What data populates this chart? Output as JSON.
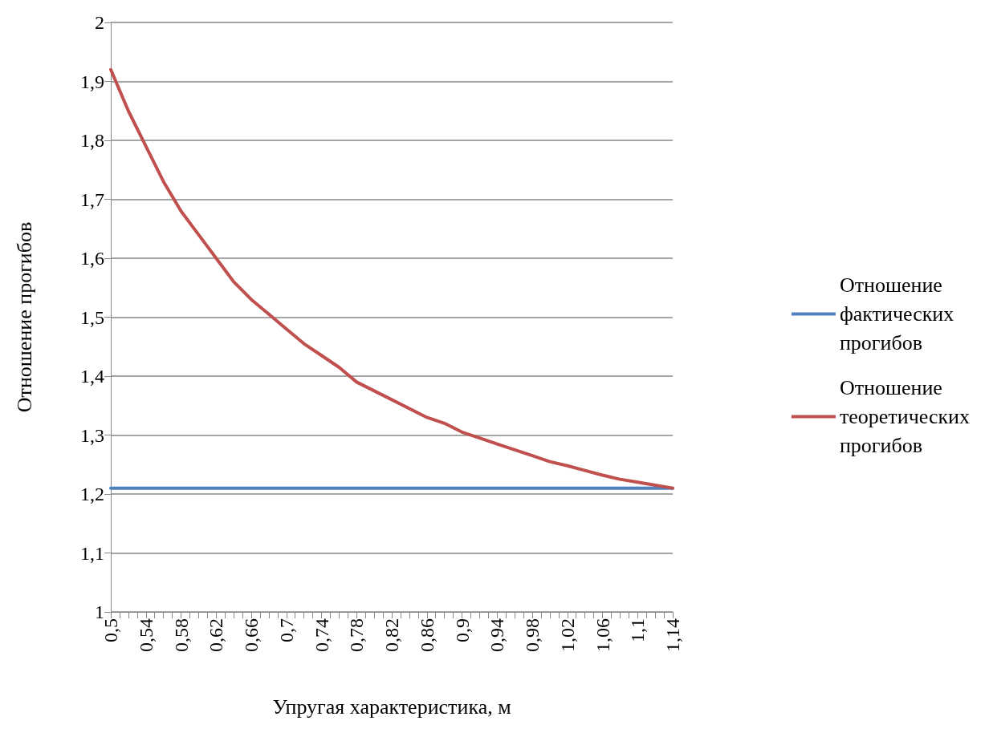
{
  "chart_data": {
    "type": "line",
    "xlabel": "Упругая характеристика, м",
    "ylabel": "Отношение прогибов",
    "xlim": [
      0.5,
      1.14
    ],
    "xticks": [
      {
        "value": 0.5,
        "label": "0,5"
      },
      {
        "value": 0.51,
        "label": null
      },
      {
        "value": 0.52,
        "label": null
      },
      {
        "value": 0.53,
        "label": null
      },
      {
        "value": 0.54,
        "label": "0,54"
      },
      {
        "value": 0.55,
        "label": null
      },
      {
        "value": 0.56,
        "label": null
      },
      {
        "value": 0.57,
        "label": null
      },
      {
        "value": 0.58,
        "label": "0,58"
      },
      {
        "value": 0.59,
        "label": null
      },
      {
        "value": 0.6,
        "label": null
      },
      {
        "value": 0.61,
        "label": null
      },
      {
        "value": 0.62,
        "label": "0,62"
      },
      {
        "value": 0.63,
        "label": null
      },
      {
        "value": 0.64,
        "label": null
      },
      {
        "value": 0.65,
        "label": null
      },
      {
        "value": 0.66,
        "label": "0,66"
      },
      {
        "value": 0.67,
        "label": null
      },
      {
        "value": 0.68,
        "label": null
      },
      {
        "value": 0.69,
        "label": null
      },
      {
        "value": 0.7,
        "label": "0,7"
      },
      {
        "value": 0.71,
        "label": null
      },
      {
        "value": 0.72,
        "label": null
      },
      {
        "value": 0.73,
        "label": null
      },
      {
        "value": 0.74,
        "label": "0,74"
      },
      {
        "value": 0.75,
        "label": null
      },
      {
        "value": 0.76,
        "label": null
      },
      {
        "value": 0.77,
        "label": null
      },
      {
        "value": 0.78,
        "label": "0,78"
      },
      {
        "value": 0.79,
        "label": null
      },
      {
        "value": 0.8,
        "label": null
      },
      {
        "value": 0.81,
        "label": null
      },
      {
        "value": 0.82,
        "label": "0,82"
      },
      {
        "value": 0.83,
        "label": null
      },
      {
        "value": 0.84,
        "label": null
      },
      {
        "value": 0.85,
        "label": null
      },
      {
        "value": 0.86,
        "label": "0,86"
      },
      {
        "value": 0.87,
        "label": null
      },
      {
        "value": 0.88,
        "label": null
      },
      {
        "value": 0.89,
        "label": null
      },
      {
        "value": 0.9,
        "label": "0,9"
      },
      {
        "value": 0.91,
        "label": null
      },
      {
        "value": 0.92,
        "label": null
      },
      {
        "value": 0.93,
        "label": null
      },
      {
        "value": 0.94,
        "label": "0,94"
      },
      {
        "value": 0.95,
        "label": null
      },
      {
        "value": 0.96,
        "label": null
      },
      {
        "value": 0.97,
        "label": null
      },
      {
        "value": 0.98,
        "label": "0,98"
      },
      {
        "value": 0.99,
        "label": null
      },
      {
        "value": 1.0,
        "label": null
      },
      {
        "value": 1.01,
        "label": null
      },
      {
        "value": 1.02,
        "label": "1,02"
      },
      {
        "value": 1.03,
        "label": null
      },
      {
        "value": 1.04,
        "label": null
      },
      {
        "value": 1.05,
        "label": null
      },
      {
        "value": 1.06,
        "label": "1,06"
      },
      {
        "value": 1.07,
        "label": null
      },
      {
        "value": 1.08,
        "label": null
      },
      {
        "value": 1.09,
        "label": null
      },
      {
        "value": 1.1,
        "label": "1,1"
      },
      {
        "value": 1.11,
        "label": null
      },
      {
        "value": 1.12,
        "label": null
      },
      {
        "value": 1.13,
        "label": null
      },
      {
        "value": 1.14,
        "label": "1,14"
      }
    ],
    "ylim": [
      1,
      2
    ],
    "yticks": [
      1,
      {
        "value": 1.1,
        "label": "1,1"
      },
      {
        "value": 1.2,
        "label": "1,2"
      },
      {
        "value": 1.3,
        "label": "1,3"
      },
      {
        "value": 1.4,
        "label": "1,4"
      },
      {
        "value": 1.5,
        "label": "1,5"
      },
      {
        "value": 1.6,
        "label": "1,6"
      },
      {
        "value": 1.7,
        "label": "1,7"
      },
      {
        "value": 1.8,
        "label": "1,8"
      },
      {
        "value": 1.9,
        "label": "1,9"
      },
      2
    ],
    "grid": "y",
    "legend": "right",
    "marker": "none",
    "line_style": "solid",
    "series": [
      {
        "name": "Отношение фактических прогибов",
        "color": "#4f81bd",
        "x": [
          0.5,
          1.14
        ],
        "values": [
          1.21,
          1.21
        ]
      },
      {
        "name": "Отношение теоретических прогибов",
        "color": "#c0504d",
        "x": [
          0.5,
          0.52,
          0.54,
          0.56,
          0.58,
          0.6,
          0.62,
          0.64,
          0.66,
          0.68,
          0.7,
          0.72,
          0.74,
          0.76,
          0.78,
          0.8,
          0.82,
          0.84,
          0.86,
          0.88,
          0.9,
          0.92,
          0.94,
          0.96,
          0.98,
          1.0,
          1.02,
          1.04,
          1.06,
          1.08,
          1.1,
          1.12,
          1.14
        ],
        "values": [
          1.92,
          1.85,
          1.79,
          1.73,
          1.68,
          1.64,
          1.6,
          1.56,
          1.53,
          1.505,
          1.48,
          1.455,
          1.435,
          1.415,
          1.39,
          1.375,
          1.36,
          1.345,
          1.33,
          1.32,
          1.305,
          1.295,
          1.285,
          1.275,
          1.265,
          1.255,
          1.248,
          1.24,
          1.232,
          1.225,
          1.22,
          1.215,
          1.21
        ]
      }
    ]
  }
}
